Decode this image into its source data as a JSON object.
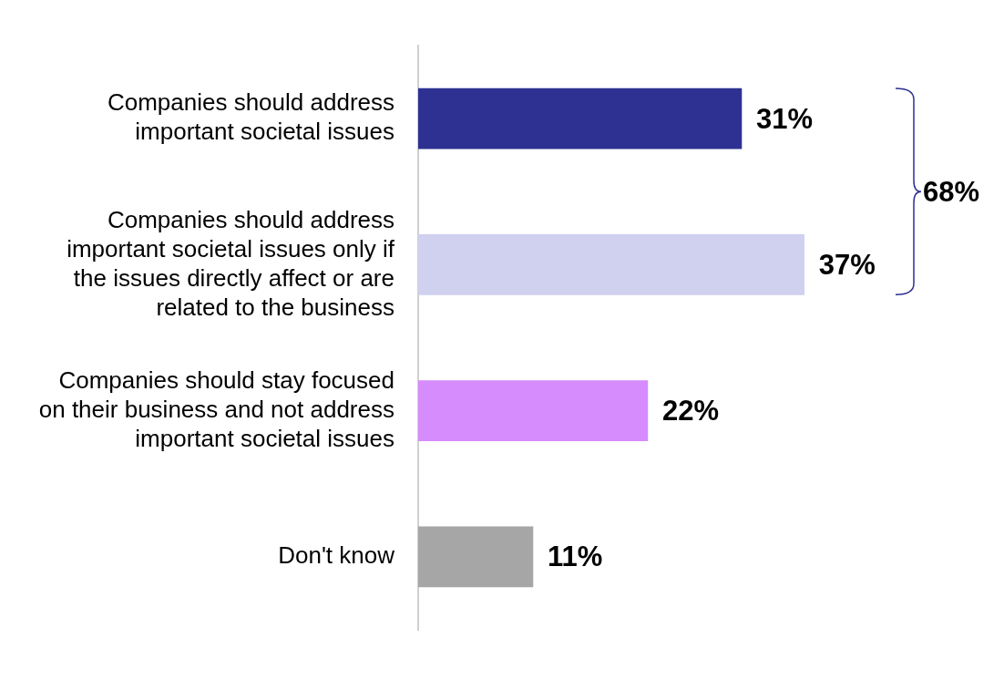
{
  "chart_data": {
    "type": "bar",
    "orientation": "horizontal",
    "categories": [
      "Companies should address important societal issues",
      "Companies should address important societal issues only if the issues directly affect or are related to the business",
      "Companies should stay focused on their business and not address important societal issues",
      "Don't know"
    ],
    "values": [
      31,
      37,
      22,
      11
    ],
    "colors": [
      "#2e3192",
      "#d0d0ef",
      "#d68cfc",
      "#a6a6a6"
    ],
    "value_labels": [
      "31%",
      "37%",
      "22%",
      "11%"
    ],
    "annotations": [
      "68%"
    ],
    "grid": false,
    "legend": false
  }
}
